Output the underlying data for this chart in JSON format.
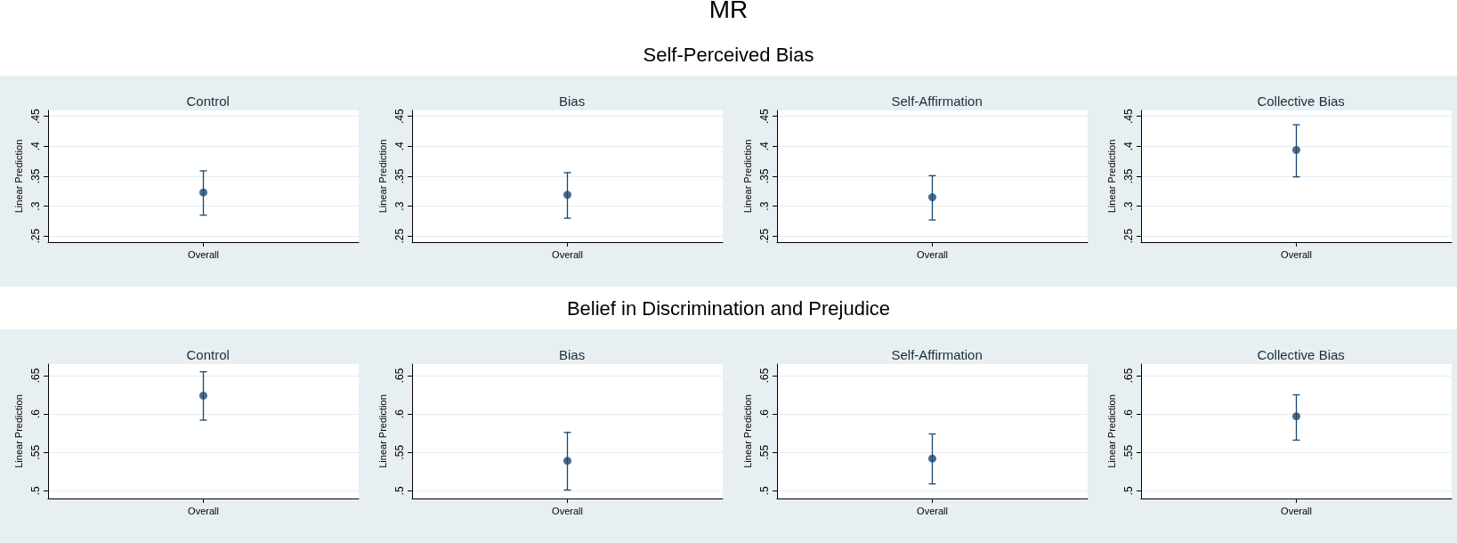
{
  "chart_data": [
    {
      "type": "scatter",
      "title": "Control",
      "ylabel": "Linear Prediction",
      "annotations": [
        "MR",
        "Self-Perceived Bias"
      ],
      "categories": [
        "Overall"
      ],
      "values": [
        0.323
      ],
      "errors": [
        [
          0.285,
          0.359
        ]
      ],
      "color": "#1a476f",
      "marker": "circle",
      "ylim": [
        0.24,
        0.46
      ],
      "yticks": [
        {
          "value": 0.25,
          "label": ".25"
        },
        {
          "value": 0.3,
          "label": ".3"
        },
        {
          "value": 0.35,
          "label": ".35"
        },
        {
          "value": 0.4,
          "label": ".4"
        },
        {
          "value": 0.45,
          "label": ".45"
        }
      ],
      "grid": "y"
    },
    {
      "type": "scatter",
      "title": "Bias",
      "ylabel": "Linear Prediction",
      "categories": [
        "Overall"
      ],
      "values": [
        0.319
      ],
      "errors": [
        [
          0.28,
          0.356
        ]
      ],
      "color": "#1a476f",
      "marker": "circle",
      "ylim": [
        0.24,
        0.46
      ],
      "yticks": [
        {
          "value": 0.25,
          "label": ".25"
        },
        {
          "value": 0.3,
          "label": ".3"
        },
        {
          "value": 0.35,
          "label": ".35"
        },
        {
          "value": 0.4,
          "label": ".4"
        },
        {
          "value": 0.45,
          "label": ".45"
        }
      ],
      "grid": "y"
    },
    {
      "type": "scatter",
      "title": "Self-Affirmation",
      "ylabel": "Linear Prediction",
      "categories": [
        "Overall"
      ],
      "values": [
        0.315
      ],
      "errors": [
        [
          0.277,
          0.351
        ]
      ],
      "color": "#1a476f",
      "marker": "circle",
      "ylim": [
        0.24,
        0.46
      ],
      "yticks": [
        {
          "value": 0.25,
          "label": ".25"
        },
        {
          "value": 0.3,
          "label": ".3"
        },
        {
          "value": 0.35,
          "label": ".35"
        },
        {
          "value": 0.4,
          "label": ".4"
        },
        {
          "value": 0.45,
          "label": ".45"
        }
      ],
      "grid": "y"
    },
    {
      "type": "scatter",
      "title": "Collective Bias",
      "ylabel": "Linear Prediction",
      "categories": [
        "Overall"
      ],
      "values": [
        0.394
      ],
      "errors": [
        [
          0.349,
          0.436
        ]
      ],
      "color": "#1a476f",
      "marker": "circle",
      "ylim": [
        0.24,
        0.46
      ],
      "yticks": [
        {
          "value": 0.25,
          "label": ".25"
        },
        {
          "value": 0.3,
          "label": ".3"
        },
        {
          "value": 0.35,
          "label": ".35"
        },
        {
          "value": 0.4,
          "label": ".4"
        },
        {
          "value": 0.45,
          "label": ".45"
        }
      ],
      "grid": "y"
    },
    {
      "type": "scatter",
      "title": "Control",
      "ylabel": "Linear Prediction",
      "annotations": [
        "Belief in Discrimination and Prejudice"
      ],
      "categories": [
        "Overall"
      ],
      "values": [
        0.624
      ],
      "errors": [
        [
          0.592,
          0.655
        ]
      ],
      "color": "#1a476f",
      "marker": "circle",
      "ylim": [
        0.49,
        0.665
      ],
      "yticks": [
        {
          "value": 0.5,
          "label": ".5"
        },
        {
          "value": 0.55,
          "label": ".55"
        },
        {
          "value": 0.6,
          "label": ".6"
        },
        {
          "value": 0.65,
          "label": ".65"
        }
      ],
      "grid": "y"
    },
    {
      "type": "scatter",
      "title": "Bias",
      "ylabel": "Linear Prediction",
      "categories": [
        "Overall"
      ],
      "values": [
        0.539
      ],
      "errors": [
        [
          0.501,
          0.576
        ]
      ],
      "color": "#1a476f",
      "marker": "circle",
      "ylim": [
        0.49,
        0.665
      ],
      "yticks": [
        {
          "value": 0.5,
          "label": ".5"
        },
        {
          "value": 0.55,
          "label": ".55"
        },
        {
          "value": 0.6,
          "label": ".6"
        },
        {
          "value": 0.65,
          "label": ".65"
        }
      ],
      "grid": "y"
    },
    {
      "type": "scatter",
      "title": "Self-Affirmation",
      "ylabel": "Linear Prediction",
      "categories": [
        "Overall"
      ],
      "values": [
        0.542
      ],
      "errors": [
        [
          0.509,
          0.574
        ]
      ],
      "color": "#1a476f",
      "marker": "circle",
      "ylim": [
        0.49,
        0.665
      ],
      "yticks": [
        {
          "value": 0.5,
          "label": ".5"
        },
        {
          "value": 0.55,
          "label": ".55"
        },
        {
          "value": 0.6,
          "label": ".6"
        },
        {
          "value": 0.65,
          "label": ".65"
        }
      ],
      "grid": "y"
    },
    {
      "type": "scatter",
      "title": "Collective Bias",
      "ylabel": "Linear Prediction",
      "categories": [
        "Overall"
      ],
      "values": [
        0.597
      ],
      "errors": [
        [
          0.566,
          0.625
        ]
      ],
      "color": "#1a476f",
      "marker": "circle",
      "ylim": [
        0.49,
        0.665
      ],
      "yticks": [
        {
          "value": 0.5,
          "label": ".5"
        },
        {
          "value": 0.55,
          "label": ".55"
        },
        {
          "value": 0.6,
          "label": ".6"
        },
        {
          "value": 0.65,
          "label": ".65"
        }
      ],
      "grid": "y"
    }
  ]
}
